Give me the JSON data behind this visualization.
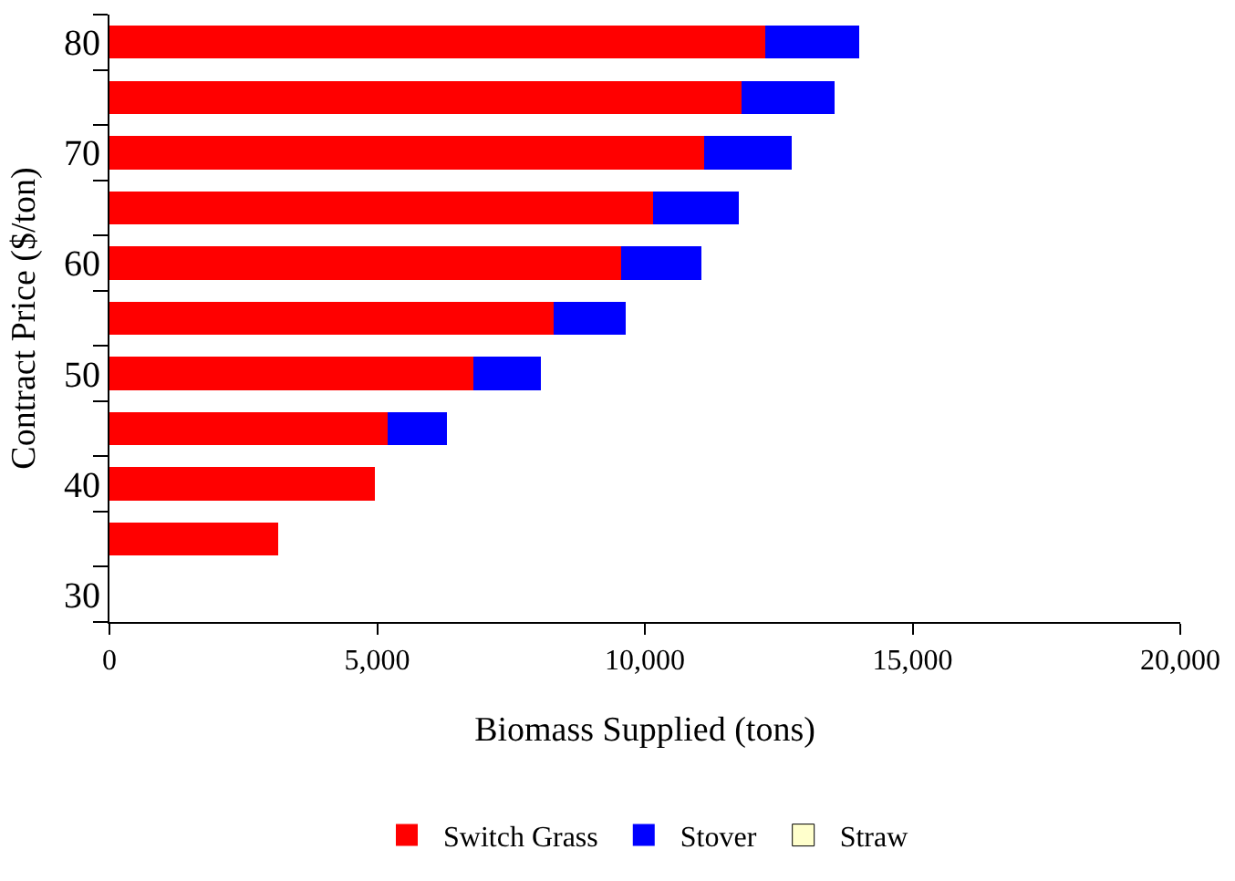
{
  "chart_data": {
    "type": "bar",
    "orientation": "horizontal",
    "stacked": true,
    "xlabel": "Biomass Supplied (tons)",
    "ylabel": "Contract Price ($/ton)",
    "categories": [
      "80",
      null,
      "70",
      null,
      "60",
      null,
      "50",
      null,
      "40",
      null,
      "30"
    ],
    "series": [
      {
        "name": "Switch Grass",
        "color": "#ff0000",
        "values": [
          12250,
          11800,
          11100,
          10150,
          9550,
          8300,
          6800,
          5200,
          4950,
          3150,
          null
        ]
      },
      {
        "name": "Stover",
        "color": "#0000ff",
        "values": [
          1750,
          1750,
          1650,
          1600,
          1500,
          1350,
          1250,
          1100,
          null,
          null,
          null
        ]
      },
      {
        "name": "Straw",
        "color": "#ffffcc",
        "values": [
          null,
          null,
          null,
          null,
          null,
          null,
          null,
          null,
          null,
          null,
          null
        ]
      }
    ],
    "xlim": [
      0,
      20000
    ],
    "xticks": [
      0,
      {
        "value": 5000,
        "label": "5,000"
      },
      {
        "value": 10000,
        "label": "10,000"
      },
      {
        "value": 15000,
        "label": "15,000"
      },
      {
        "value": 20000,
        "label": "20,000"
      }
    ],
    "legend": "bottom"
  }
}
